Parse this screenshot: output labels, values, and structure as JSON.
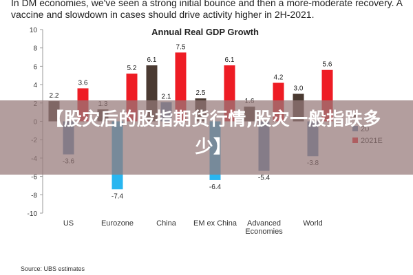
{
  "intro_text": "In DM economies, we've seen a strong initial bounce and then a more-moderate recovery. A vaccine and slowdown in cases should drive activity higher in 2H-2021.",
  "overlay_title": "【股灾后的股指期货行情,股灾一般指跌多少】",
  "source_note": "Source: UBS estimates",
  "chart_data": {
    "type": "bar",
    "title": "Annual Real GDP Growth",
    "categories": [
      "US",
      "Eurozone",
      "China",
      "EM ex China",
      "Advanced\nEconomies",
      "World"
    ],
    "series": [
      {
        "name": "",
        "values": [
          2.2,
          1.3,
          6.1,
          2.5,
          1.6,
          3.0
        ]
      },
      {
        "name": "20",
        "values": [
          -3.6,
          -7.4,
          2.1,
          -6.4,
          -5.4,
          -3.8
        ]
      },
      {
        "name": "2021E",
        "values": [
          3.6,
          5.2,
          7.5,
          6.1,
          4.2,
          5.6
        ]
      }
    ],
    "value_labels": [
      [
        "2.2",
        "1.3",
        "6.1",
        "2.5",
        "1.6",
        "3.0"
      ],
      [
        "-3.6",
        "-7.4",
        "2.1",
        "-6.4",
        "-5.4",
        "-3.8"
      ],
      [
        "3.6",
        "5.2",
        "7.5",
        "6.1",
        "4.2",
        "5.6"
      ]
    ],
    "ylim": [
      -10,
      10
    ],
    "yticks": [
      -10,
      -8,
      -6,
      -4,
      -2,
      0,
      2,
      4,
      6,
      8,
      10
    ],
    "colors": [
      "#4a3a32",
      "#5a86b0",
      "#ee1c24"
    ],
    "highlight_colors": {
      "1": "#29b6f0"
    },
    "highlight_points": [
      [
        1,
        1
      ],
      [
        1,
        3
      ]
    ],
    "legend_position": "right"
  }
}
